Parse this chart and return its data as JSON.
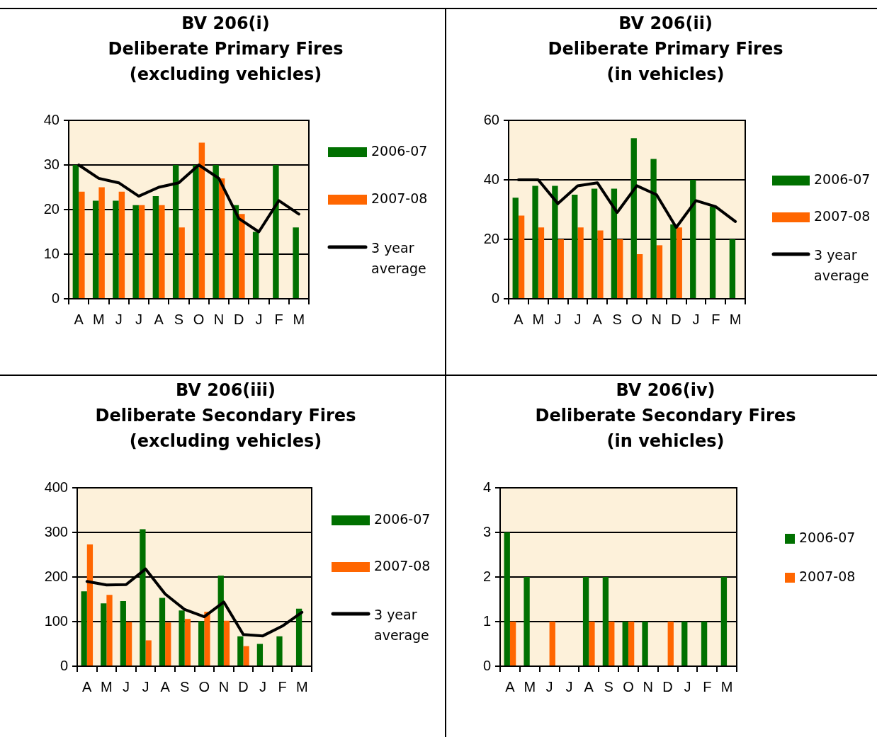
{
  "chart_data": [
    {
      "type": "bar",
      "title": "BV 206(i)\nDeliberate Primary Fires\n(excluding vehicles)",
      "categories": [
        "A",
        "M",
        "J",
        "J",
        "A",
        "S",
        "O",
        "N",
        "D",
        "J",
        "F",
        "M"
      ],
      "series": [
        {
          "name": "2006-07",
          "color": "#007000",
          "values": [
            30,
            22,
            22,
            21,
            23,
            30,
            30,
            30,
            21,
            15,
            30,
            16
          ]
        },
        {
          "name": "2007-08",
          "color": "#ff6600",
          "values": [
            24,
            25,
            24,
            21,
            21,
            16,
            35,
            27,
            19,
            null,
            null,
            null
          ]
        },
        {
          "name": "3 year average",
          "type": "line",
          "color": "#000000",
          "values": [
            30,
            27,
            26,
            23,
            25,
            26,
            30,
            27,
            18,
            15,
            22,
            19
          ]
        }
      ],
      "ylim": [
        0,
        40
      ],
      "yticks": [
        0,
        10,
        20,
        30,
        40
      ],
      "grid": "y",
      "legend": "right",
      "marker": "none"
    },
    {
      "type": "bar",
      "title": "BV 206(ii)\nDeliberate Primary Fires\n(in vehicles)",
      "categories": [
        "A",
        "M",
        "J",
        "J",
        "A",
        "S",
        "O",
        "N",
        "D",
        "J",
        "F",
        "M"
      ],
      "series": [
        {
          "name": "2006-07",
          "color": "#007000",
          "values": [
            34,
            38,
            38,
            35,
            37,
            37,
            54,
            47,
            25,
            40,
            31,
            20
          ]
        },
        {
          "name": "2007-08",
          "color": "#ff6600",
          "values": [
            28,
            24,
            20,
            24,
            23,
            20,
            15,
            18,
            24,
            null,
            null,
            null
          ]
        },
        {
          "name": "3 year average",
          "type": "line",
          "color": "#000000",
          "values": [
            40,
            40,
            32,
            38,
            39,
            29,
            38,
            35,
            24,
            33,
            31,
            26
          ]
        }
      ],
      "ylim": [
        0,
        60
      ],
      "yticks": [
        0,
        20,
        40,
        60
      ],
      "grid": "y",
      "legend": "right",
      "marker": "none"
    },
    {
      "type": "bar",
      "title": "BV 206(iii)\nDeliberate Secondary Fires\n(excluding vehicles)",
      "categories": [
        "A",
        "M",
        "J",
        "J",
        "A",
        "S",
        "O",
        "N",
        "D",
        "J",
        "F",
        "M"
      ],
      "series": [
        {
          "name": "2006-07",
          "color": "#007000",
          "values": [
            168,
            141,
            146,
            307,
            153,
            125,
            101,
            203,
            67,
            50,
            67,
            129
          ]
        },
        {
          "name": "2007-08",
          "color": "#ff6600",
          "values": [
            273,
            160,
            99,
            58,
            98,
            106,
            122,
            102,
            45,
            null,
            null,
            null
          ]
        },
        {
          "name": "3 year average",
          "type": "line",
          "color": "#000000",
          "values": [
            190,
            182,
            183,
            218,
            162,
            127,
            111,
            144,
            71,
            68,
            90,
            121
          ]
        }
      ],
      "ylim": [
        0,
        400
      ],
      "yticks": [
        0,
        100,
        200,
        300,
        400
      ],
      "grid": "y",
      "legend": "right",
      "marker": "none"
    },
    {
      "type": "bar",
      "title": "BV 206(iv)\nDeliberate Secondary Fires\n(in vehicles)",
      "categories": [
        "A",
        "M",
        "J",
        "J",
        "A",
        "S",
        "O",
        "N",
        "D",
        "J",
        "F",
        "M"
      ],
      "series": [
        {
          "name": "2006-07",
          "color": "#007000",
          "values": [
            3,
            2,
            null,
            null,
            2,
            2,
            1,
            1,
            null,
            1,
            1,
            2
          ]
        },
        {
          "name": "2007-08",
          "color": "#ff6600",
          "values": [
            1,
            null,
            1,
            null,
            1,
            1,
            1,
            null,
            1,
            null,
            null,
            null
          ]
        }
      ],
      "ylim": [
        0,
        4
      ],
      "yticks": [
        0,
        1,
        2,
        3,
        4
      ],
      "grid": "y",
      "legend": "right"
    }
  ]
}
